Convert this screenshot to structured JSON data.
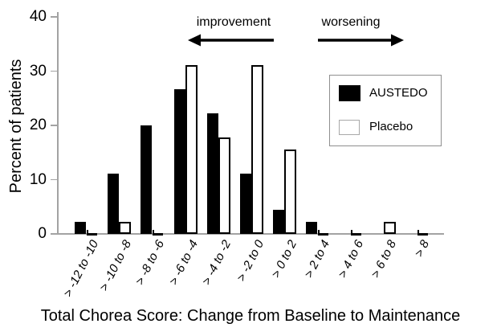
{
  "chart_data": {
    "type": "bar",
    "title": "",
    "xlabel": "Total Chorea Score: Change from Baseline to Maintenance",
    "ylabel": "Percent of patients",
    "categories": [
      "> -12 to -10",
      "> -10 to -8",
      "> -8 to -6",
      "> -6 to -4",
      "> -4 to -2",
      "> -2 to 0",
      "> 0 to 2",
      "> 2 to 4",
      "> 4 to 6",
      "> 6 to 8",
      "> 8"
    ],
    "series": [
      {
        "name": "AUSTEDO",
        "fill": "#000000",
        "values": [
          2.2,
          11.1,
          20.0,
          26.7,
          22.2,
          11.1,
          4.4,
          2.2,
          0,
          0,
          0
        ]
      },
      {
        "name": "Placebo",
        "fill": "#ffffff",
        "values": [
          0,
          2.2,
          0,
          31.1,
          17.8,
          31.1,
          15.6,
          0,
          0,
          2.2,
          0
        ]
      }
    ],
    "ylim": [
      0,
      40
    ],
    "y_ticks": [
      0,
      10,
      20,
      30,
      40
    ],
    "grid": false,
    "legend_position": "upper right",
    "annotations": [
      {
        "label": "improvement",
        "direction": "left"
      },
      {
        "label": "worsening",
        "direction": "right"
      }
    ]
  },
  "legend": {
    "austedo_label": "AUSTEDO",
    "placebo_label": "Placebo"
  },
  "annotations": {
    "improvement": "improvement",
    "worsening": "worsening"
  },
  "colors": {
    "bar_fill": "#000000",
    "bar_stroke": "#000000",
    "axis": "#a3a3a3",
    "legend_border": "#8f8f8f",
    "text": "#000000",
    "background": "#ffffff"
  }
}
